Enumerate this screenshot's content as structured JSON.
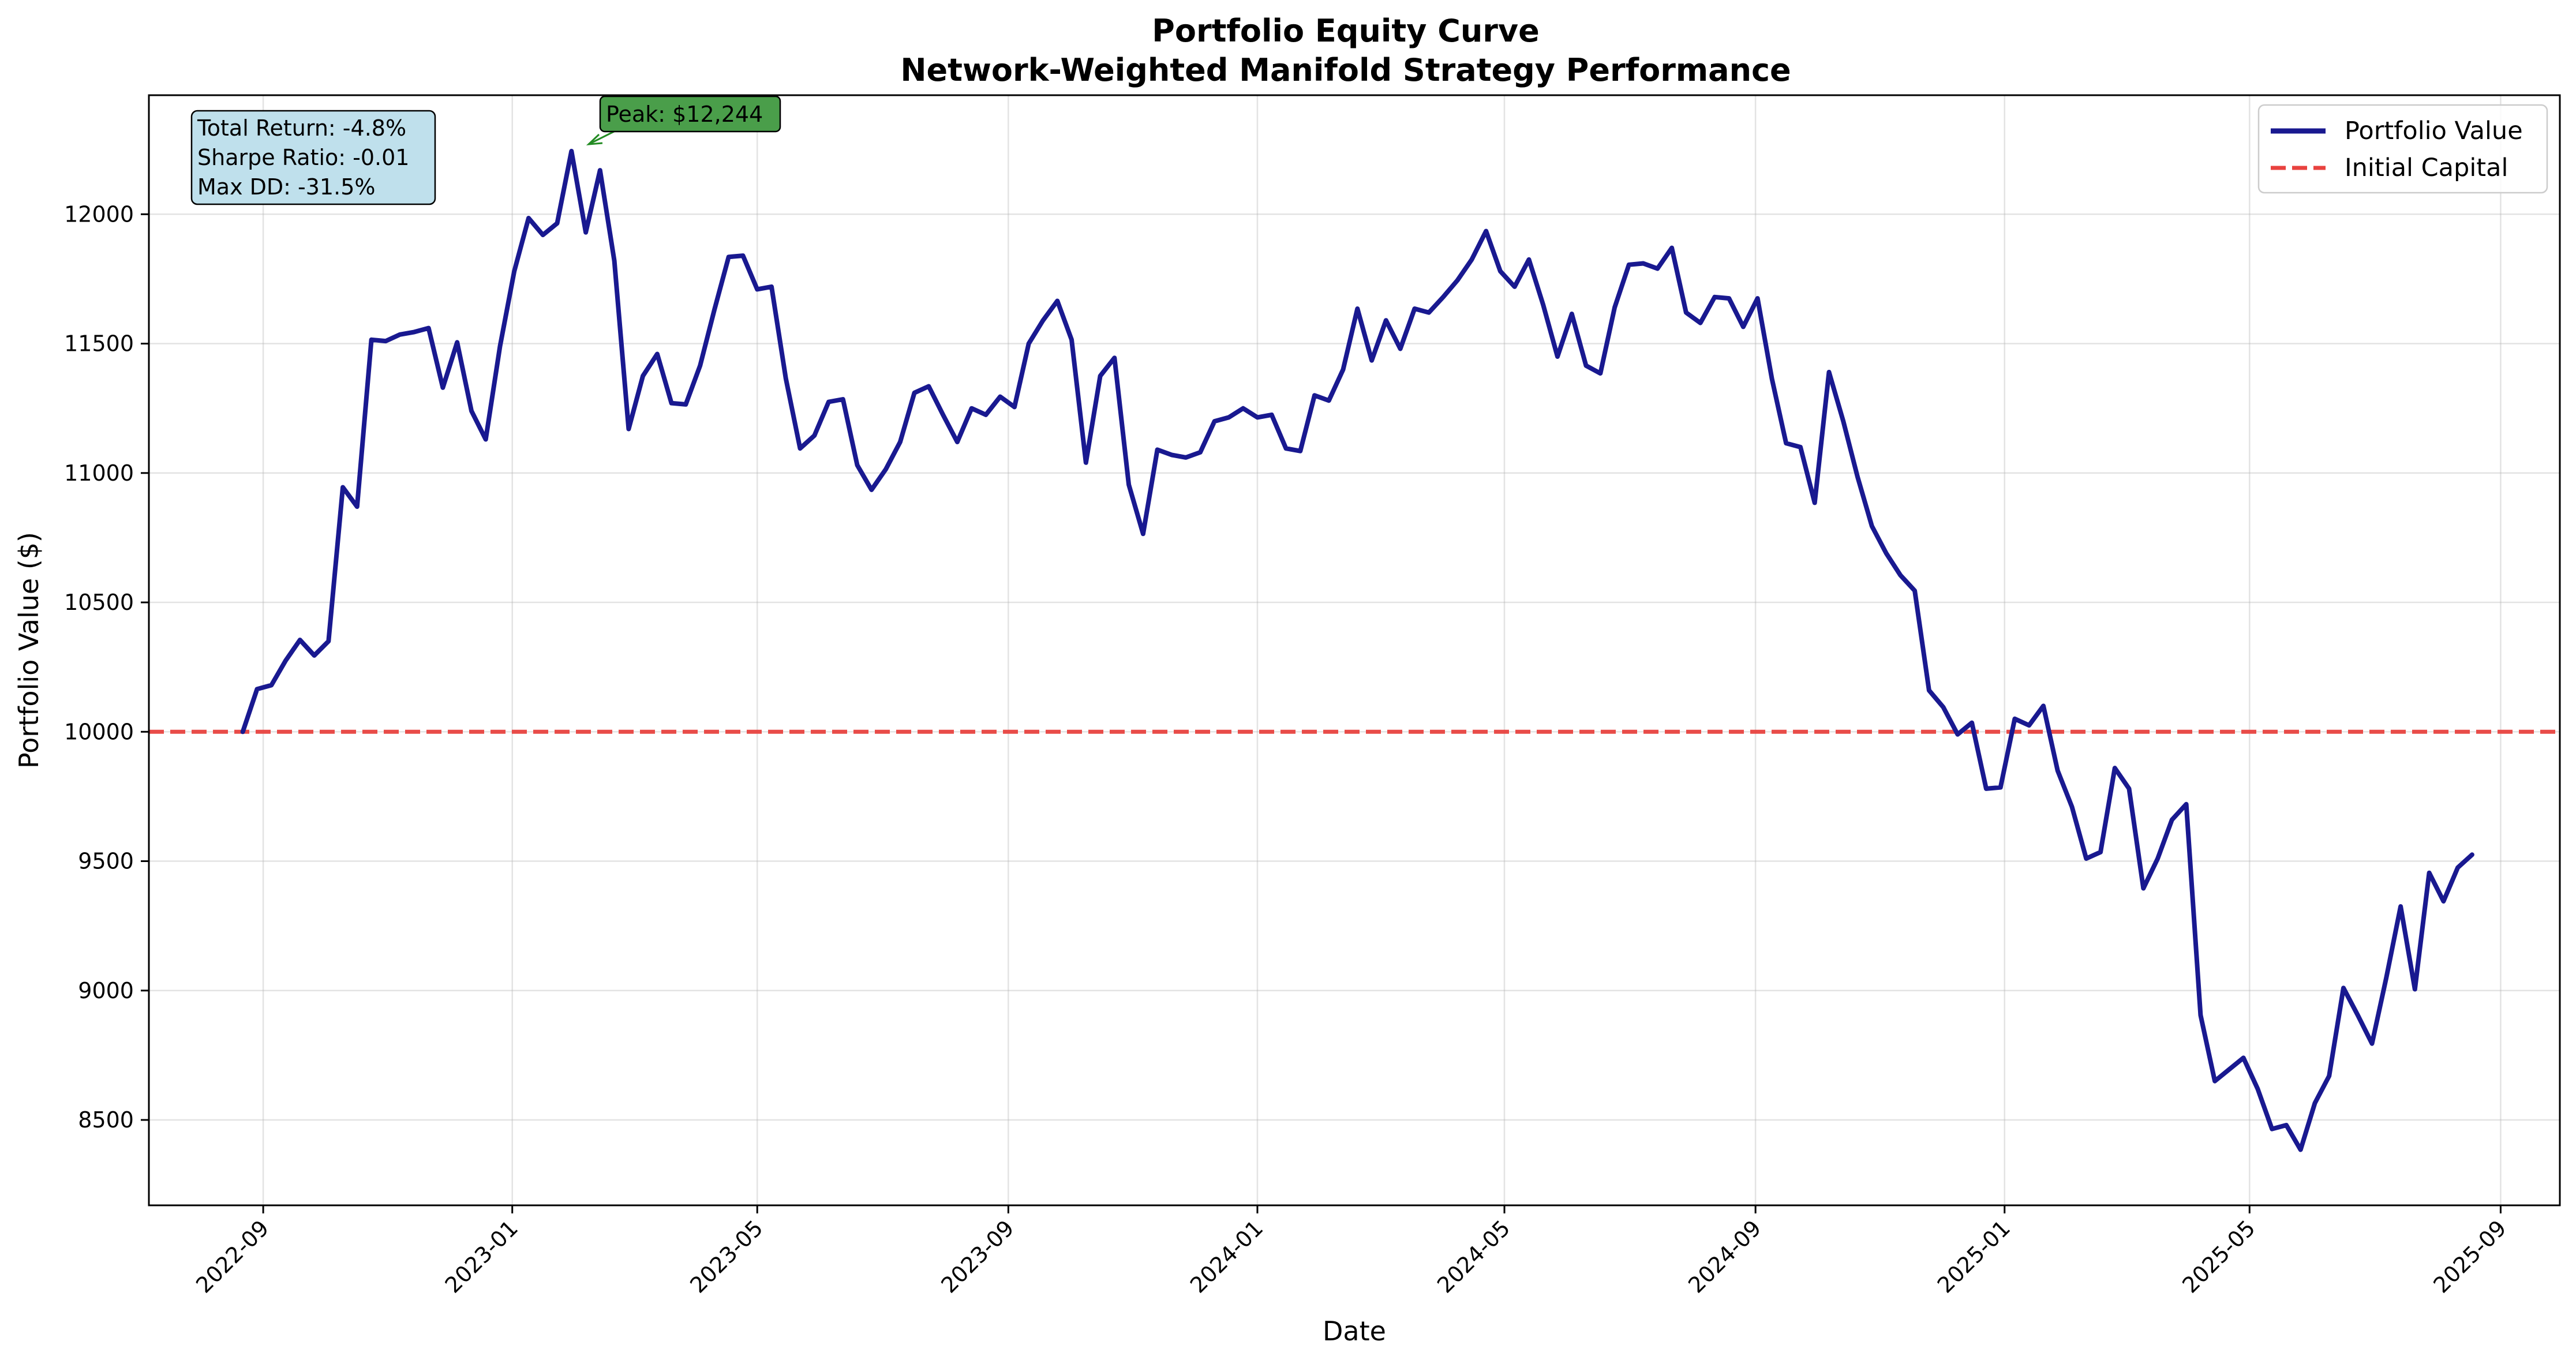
{
  "chart_data": {
    "type": "line",
    "title": "Portfolio Equity Curve",
    "subtitle": "Network-Weighted Manifold Strategy Performance",
    "xlabel": "Date",
    "ylabel": "Portfolio Value ($)",
    "x_axis_type": "date",
    "xlim": [
      "2022-07-07",
      "2025-09-30"
    ],
    "ylim": [
      8170,
      12460
    ],
    "grid": true,
    "legend_position": "top-right",
    "x_ticks": [
      "2022-09-01",
      "2023-01-01",
      "2023-05-01",
      "2023-09-01",
      "2024-01-01",
      "2024-05-01",
      "2024-09-01",
      "2025-01-01",
      "2025-05-01",
      "2025-09-01"
    ],
    "x_tick_labels": [
      "2022-09",
      "2023-01",
      "2023-05",
      "2023-09",
      "2024-01",
      "2024-05",
      "2024-09",
      "2025-01",
      "2025-05",
      "2025-09"
    ],
    "y_ticks": [
      8500,
      9000,
      9500,
      10000,
      10500,
      11000,
      11500,
      12000
    ],
    "y_tick_labels": [
      "8500",
      "9000",
      "9500",
      "10000",
      "10500",
      "11000",
      "11500",
      "12000"
    ],
    "series": [
      {
        "name": "Portfolio Value",
        "color": "#191990",
        "style": "solid",
        "x": [
          "2022-08-22",
          "2022-08-29",
          "2022-09-05",
          "2022-09-12",
          "2022-09-19",
          "2022-09-26",
          "2022-10-03",
          "2022-10-10",
          "2022-10-17",
          "2022-10-24",
          "2022-10-31",
          "2022-11-07",
          "2022-11-14",
          "2022-11-21",
          "2022-11-28",
          "2022-12-05",
          "2022-12-12",
          "2022-12-19",
          "2022-12-26",
          "2023-01-02",
          "2023-01-09",
          "2023-01-16",
          "2023-01-23",
          "2023-01-30",
          "2023-02-06",
          "2023-02-13",
          "2023-02-20",
          "2023-02-27",
          "2023-03-06",
          "2023-03-13",
          "2023-03-20",
          "2023-03-27",
          "2023-04-03",
          "2023-04-10",
          "2023-04-17",
          "2023-04-24",
          "2023-05-01",
          "2023-05-08",
          "2023-05-15",
          "2023-05-22",
          "2023-05-29",
          "2023-06-05",
          "2023-06-12",
          "2023-06-19",
          "2023-06-26",
          "2023-07-03",
          "2023-07-10",
          "2023-07-17",
          "2023-07-24",
          "2023-07-31",
          "2023-08-07",
          "2023-08-14",
          "2023-08-21",
          "2023-08-28",
          "2023-09-04",
          "2023-09-11",
          "2023-09-18",
          "2023-09-25",
          "2023-10-02",
          "2023-10-09",
          "2023-10-16",
          "2023-10-23",
          "2023-10-30",
          "2023-11-06",
          "2023-11-13",
          "2023-11-20",
          "2023-11-27",
          "2023-12-04",
          "2023-12-11",
          "2023-12-18",
          "2023-12-25",
          "2024-01-01",
          "2024-01-08",
          "2024-01-15",
          "2024-01-22",
          "2024-01-29",
          "2024-02-05",
          "2024-02-12",
          "2024-02-19",
          "2024-02-26",
          "2024-03-04",
          "2024-03-11",
          "2024-03-18",
          "2024-03-25",
          "2024-04-01",
          "2024-04-08",
          "2024-04-15",
          "2024-04-22",
          "2024-04-29",
          "2024-05-06",
          "2024-05-13",
          "2024-05-20",
          "2024-05-27",
          "2024-06-03",
          "2024-06-10",
          "2024-06-17",
          "2024-06-24",
          "2024-07-01",
          "2024-07-08",
          "2024-07-15",
          "2024-07-22",
          "2024-07-29",
          "2024-08-05",
          "2024-08-12",
          "2024-08-19",
          "2024-08-26",
          "2024-09-02",
          "2024-09-09",
          "2024-09-16",
          "2024-09-23",
          "2024-09-30",
          "2024-10-07",
          "2024-10-14",
          "2024-10-21",
          "2024-10-28",
          "2024-11-04",
          "2024-11-11",
          "2024-11-18",
          "2024-11-25",
          "2024-12-02",
          "2024-12-09",
          "2024-12-16",
          "2024-12-23",
          "2024-12-30",
          "2025-01-06",
          "2025-01-13",
          "2025-01-20",
          "2025-01-27",
          "2025-02-03",
          "2025-02-10",
          "2025-02-17",
          "2025-02-24",
          "2025-03-03",
          "2025-03-10",
          "2025-03-17",
          "2025-03-24",
          "2025-03-31",
          "2025-04-07",
          "2025-04-14",
          "2025-04-21",
          "2025-04-28",
          "2025-05-05",
          "2025-05-12",
          "2025-05-19",
          "2025-05-26",
          "2025-06-02",
          "2025-06-09",
          "2025-06-16",
          "2025-06-23",
          "2025-06-30",
          "2025-07-07",
          "2025-07-14",
          "2025-07-21",
          "2025-07-28",
          "2025-08-04",
          "2025-08-11",
          "2025-08-18"
        ],
        "y": [
          10000,
          10165,
          10180,
          10275,
          10355,
          10295,
          10350,
          10945,
          10870,
          11515,
          11510,
          11535,
          11545,
          11560,
          11330,
          11505,
          11240,
          11130,
          11490,
          11780,
          11985,
          11920,
          11965,
          12244,
          11930,
          12170,
          11820,
          11170,
          11375,
          11460,
          11270,
          11265,
          11415,
          11630,
          11835,
          11840,
          11710,
          11720,
          11365,
          11095,
          11145,
          11275,
          11285,
          11030,
          10935,
          11015,
          11120,
          11310,
          11335,
          11225,
          11120,
          11250,
          11225,
          11295,
          11255,
          11500,
          11590,
          11665,
          11515,
          11040,
          11375,
          11445,
          10955,
          10765,
          11090,
          11070,
          11060,
          11080,
          11200,
          11215,
          11250,
          11215,
          11225,
          11095,
          11085,
          11300,
          11280,
          11400,
          11635,
          11435,
          11590,
          11480,
          11635,
          11620,
          11680,
          11745,
          11825,
          11935,
          11780,
          11720,
          11825,
          11650,
          11450,
          11615,
          11415,
          11385,
          11640,
          11805,
          11810,
          11790,
          11870,
          11620,
          11580,
          11680,
          11675,
          11565,
          11675,
          11365,
          11115,
          11100,
          10885,
          11390,
          11200,
          10985,
          10795,
          10690,
          10605,
          10545,
          10160,
          10095,
          9990,
          10035,
          9780,
          9785,
          10050,
          10025,
          10100,
          9850,
          9710,
          9510,
          9535,
          9860,
          9780,
          9395,
          9510,
          9660,
          9720,
          8905,
          8650,
          8695,
          8740,
          8620,
          8465,
          8480,
          8385,
          8565,
          8670,
          9010,
          8905,
          8795,
          9050,
          9325,
          9005,
          9455,
          9345,
          9475,
          9525
        ]
      },
      {
        "name": "Initial Capital",
        "color": "#e8423f",
        "style": "dashed",
        "value": 10000
      }
    ],
    "annotations": {
      "peak": {
        "text": "Peak: $12,244",
        "x": "2023-01-30",
        "y": 12244,
        "box_color": "#4a9e4a",
        "arrow_color": "#228b22"
      },
      "stats": {
        "box_color": "#bfe0ec",
        "lines": [
          "Total Return: -4.8%",
          "Sharpe Ratio: -0.01",
          "Max DD: -31.5%"
        ]
      }
    }
  }
}
